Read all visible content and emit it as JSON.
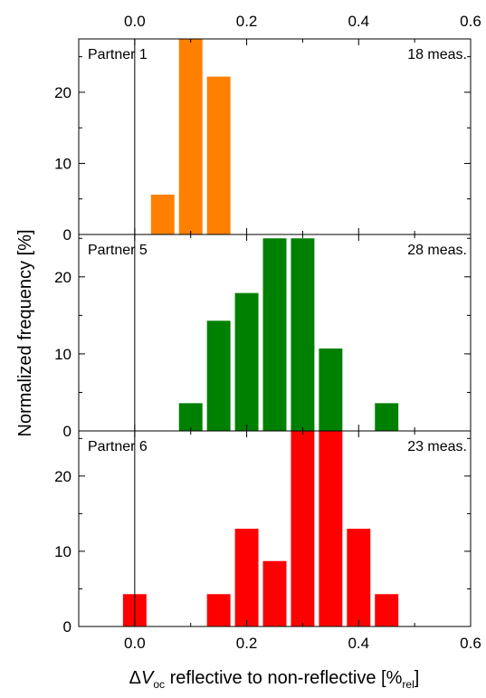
{
  "chart_data": {
    "type": "bar",
    "ylabel": "Normalized frequency [%]",
    "xlabel": {
      "prefix": "Δ",
      "var": "V",
      "sub": "oc",
      "mid": " reflective to non-reflective [%",
      "sub2": "rel",
      "end": "]"
    },
    "xlim": [
      -0.1,
      0.6
    ],
    "xticks": [
      0.0,
      0.2,
      0.4,
      0.6
    ],
    "xtick_labels": [
      "0.0",
      "0.2",
      "0.4",
      "0.6"
    ],
    "bin_width": 0.05,
    "panels": [
      {
        "label": "Partner 1",
        "count_label": "18 meas.",
        "color": "#ff8000",
        "ylim": [
          0,
          27.5
        ],
        "yticks": [
          0,
          10,
          20
        ],
        "ytick_labels": [
          "0",
          "10",
          "20"
        ],
        "bins": [
          0.05,
          0.1,
          0.15
        ],
        "values": [
          5.6,
          27.8,
          22.2
        ]
      },
      {
        "label": "Partner 5",
        "count_label": "28 meas.",
        "color": "#008000",
        "ylim": [
          0,
          25.5
        ],
        "yticks": [
          0,
          10,
          20
        ],
        "ytick_labels": [
          "0",
          "10",
          "20"
        ],
        "bins": [
          0.1,
          0.15,
          0.2,
          0.25,
          0.3,
          0.35,
          0.45
        ],
        "values": [
          3.6,
          14.3,
          17.9,
          25.0,
          25.0,
          10.7,
          3.6
        ]
      },
      {
        "label": "Partner 6",
        "count_label": "23 meas.",
        "color": "#ff0000",
        "ylim": [
          0,
          26.0
        ],
        "yticks": [
          0,
          10,
          20
        ],
        "ytick_labels": [
          "0",
          "10",
          "20"
        ],
        "bins": [
          0.0,
          0.15,
          0.2,
          0.25,
          0.3,
          0.35,
          0.4,
          0.45
        ],
        "values": [
          4.3,
          4.3,
          13.0,
          8.7,
          26.1,
          26.1,
          13.0,
          4.3
        ]
      }
    ]
  }
}
